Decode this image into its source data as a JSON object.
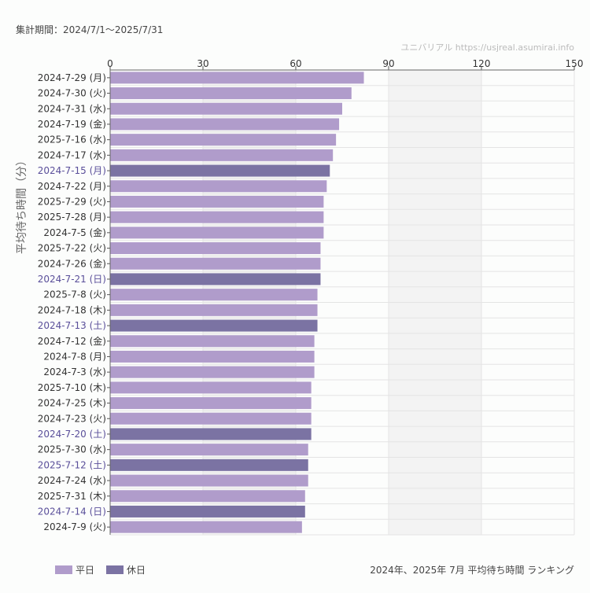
{
  "header": {
    "period": "集計期間：2024/7/1～2025/7/31",
    "source": "ユニバリアル  https://usjreal.asumirai.info"
  },
  "footer": {
    "title": "2024年、2025年 7月 平均待ち時間 ランキング"
  },
  "colors": {
    "weekday": "#b09ccb",
    "holiday": "#7b73a3",
    "holiday_label": "#5a4f9a",
    "label": "#333333"
  },
  "chart_data": {
    "type": "bar",
    "orientation": "horizontal",
    "ylabel": "平均待ち時間（分）",
    "xlim": [
      0,
      150
    ],
    "xticks": [
      0,
      30,
      60,
      90,
      120,
      150
    ],
    "grid": true,
    "legend_placement": "bottom-left",
    "legend": [
      {
        "key": "weekday",
        "label": "平日"
      },
      {
        "key": "holiday",
        "label": "休日"
      }
    ],
    "categories": [
      "2024-7-29 (月)",
      "2024-7-30 (火)",
      "2024-7-31 (水)",
      "2024-7-19 (金)",
      "2025-7-16 (水)",
      "2024-7-17 (水)",
      "2024-7-15 (月)",
      "2024-7-22 (月)",
      "2025-7-29 (火)",
      "2025-7-28 (月)",
      "2024-7-5 (金)",
      "2025-7-22 (火)",
      "2024-7-26 (金)",
      "2024-7-21 (日)",
      "2025-7-8 (火)",
      "2024-7-18 (木)",
      "2024-7-13 (土)",
      "2024-7-12 (金)",
      "2024-7-8 (月)",
      "2024-7-3 (水)",
      "2025-7-10 (木)",
      "2024-7-25 (木)",
      "2024-7-23 (火)",
      "2024-7-20 (土)",
      "2025-7-30 (水)",
      "2025-7-12 (土)",
      "2024-7-24 (水)",
      "2025-7-31 (木)",
      "2024-7-14 (日)",
      "2024-7-9 (火)"
    ],
    "values": [
      82,
      78,
      75,
      74,
      73,
      72,
      71,
      70,
      69,
      69,
      69,
      68,
      68,
      68,
      67,
      67,
      67,
      66,
      66,
      66,
      65,
      65,
      65,
      65,
      64,
      64,
      64,
      63,
      63,
      62
    ],
    "holiday": [
      false,
      false,
      false,
      false,
      false,
      false,
      true,
      false,
      false,
      false,
      false,
      false,
      false,
      true,
      false,
      false,
      true,
      false,
      false,
      false,
      false,
      false,
      false,
      true,
      false,
      true,
      false,
      false,
      true,
      false
    ]
  }
}
